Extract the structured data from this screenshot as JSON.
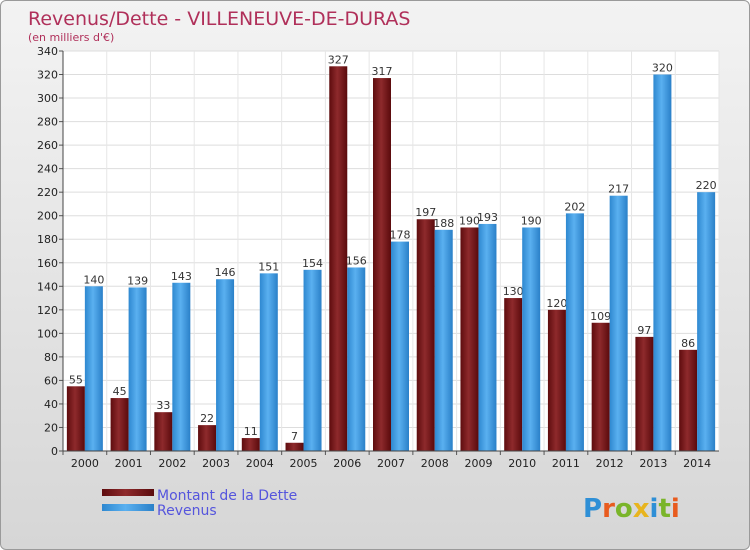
{
  "chart_data": {
    "type": "bar",
    "title": "Revenus/Dette - VILLENEUVE-DE-DURAS",
    "subtitle": "(en milliers d'€)",
    "categories": [
      "2000",
      "2001",
      "2002",
      "2003",
      "2004",
      "2005",
      "2006",
      "2007",
      "2008",
      "2009",
      "2010",
      "2011",
      "2012",
      "2013",
      "2014"
    ],
    "series": [
      {
        "name": "Montant de la Dette",
        "color": "#7a1416",
        "values": [
          55,
          45,
          33,
          22,
          11,
          7,
          327,
          317,
          197,
          190,
          130,
          120,
          109,
          97,
          86
        ]
      },
      {
        "name": "Revenus",
        "color": "#3f9fe8",
        "values": [
          140,
          139,
          143,
          146,
          151,
          154,
          156,
          178,
          188,
          193,
          190,
          202,
          217,
          320,
          220
        ]
      }
    ],
    "ylim": [
      0,
      340
    ],
    "yticks": [
      0,
      20,
      40,
      60,
      80,
      100,
      120,
      140,
      160,
      180,
      200,
      220,
      240,
      260,
      280,
      300,
      320,
      340
    ],
    "grid": true,
    "legend": "bottom-left"
  },
  "brand": "Proxiti"
}
